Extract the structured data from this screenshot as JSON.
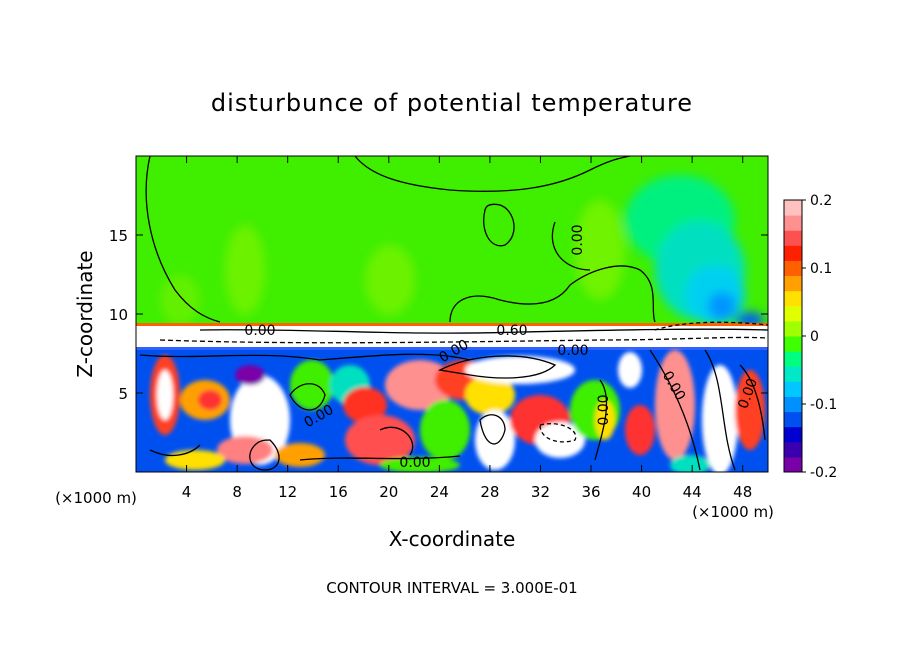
{
  "chart_data": {
    "type": "heatmap",
    "title": "disturbunce of potential temperature",
    "xlabel": "X-coordinate",
    "ylabel": "Z-coordinate",
    "x_unit_label": "(×1000 m)",
    "x_unit_label_right": "(×1000 m)",
    "footer": "CONTOUR INTERVAL = 3.000E-01",
    "xlim": [
      0,
      50
    ],
    "ylim": [
      0,
      20
    ],
    "x_ticks": [
      4,
      8,
      12,
      16,
      20,
      24,
      28,
      32,
      36,
      40,
      44,
      48
    ],
    "y_ticks": [
      5,
      10,
      15
    ],
    "colorbar": {
      "min": -0.2,
      "max": 0.2,
      "ticks": [
        0.2,
        0.1,
        0,
        -0.1,
        -0.2
      ],
      "tick_labels": [
        "0.2",
        "0.1",
        "0",
        "-0.1",
        "-0.2"
      ],
      "colors": [
        "#7a00a8",
        "#3a00b0",
        "#0000d0",
        "#0050f0",
        "#0090ff",
        "#00c8ff",
        "#00e8c8",
        "#00ff80",
        "#40ff00",
        "#a0ff00",
        "#e0ff00",
        "#ffe000",
        "#ffa000",
        "#ff6000",
        "#ff2000",
        "#ff5050",
        "#ff9090",
        "#ffc0c0"
      ]
    },
    "contour_labels": [
      {
        "text": "0.00",
        "x": 35,
        "z": 15.0
      },
      {
        "text": "0.00",
        "x": 7.6,
        "z": 9.0
      },
      {
        "text": "0.60",
        "x": 28.5,
        "z": 9.0
      },
      {
        "text": "0.00",
        "x": 25.5,
        "z": 7.6
      },
      {
        "text": "0.00",
        "x": 34.2,
        "z": 7.7
      },
      {
        "text": "0.00",
        "x": 14.6,
        "z": 3.6
      },
      {
        "text": "0.00",
        "x": 22.2,
        "z": 0.6
      },
      {
        "text": "0.00",
        "x": 37.0,
        "z": 4.0
      },
      {
        "text": "0.00",
        "x": 42.8,
        "z": 5.5
      },
      {
        "text": "0.00",
        "x": 47.5,
        "z": 4.8
      }
    ]
  }
}
